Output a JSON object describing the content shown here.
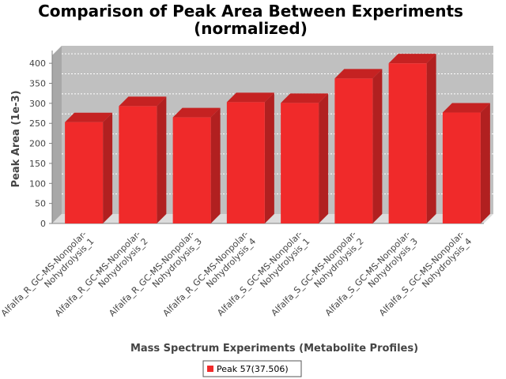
{
  "chart_data": {
    "type": "bar",
    "title": "Comparison of Peak Area Between Experiments",
    "subtitle": "(normalized)",
    "xlabel": "Mass Spectrum Experiments (Metabolite Profiles)",
    "ylabel": "Peak Area (1e-3)",
    "ylim": [
      0,
      420
    ],
    "yticks": [
      0,
      50,
      100,
      150,
      200,
      250,
      300,
      350,
      400
    ],
    "grid": true,
    "legend_position": "bottom-center",
    "categories": [
      [
        "Alfalfa_R_GC-MS-Nonpolar-",
        "Nohydrolysis_1"
      ],
      [
        "Alfalfa_R_GC-MS-Nonpolar-",
        "Nohydrolysis_2"
      ],
      [
        "Alfalfa_R_GC-MS-Nonpolar-",
        "Nohydrolysis_3"
      ],
      [
        "Alfalfa_R_GC-MS-Nonpolar-",
        "Nohydrolysis_4"
      ],
      [
        "Alfalfa_S_GC-MS-Nonpolar-",
        "Nohydrolysis_1"
      ],
      [
        "Alfalfa_S_GC-MS-Nonpolar-",
        "Nohydrolysis_2"
      ],
      [
        "Alfalfa_S_GC-MS-Nonpolar-",
        "Nohydrolysis_3"
      ],
      [
        "Alfalfa_S_GC-MS-Nonpolar-",
        "Nohydrolysis_4"
      ]
    ],
    "series": [
      {
        "name": "Peak 57(37.506)",
        "color": "#f02a2a",
        "values": [
          253,
          293,
          265,
          303,
          301,
          362,
          400,
          277
        ]
      }
    ]
  }
}
